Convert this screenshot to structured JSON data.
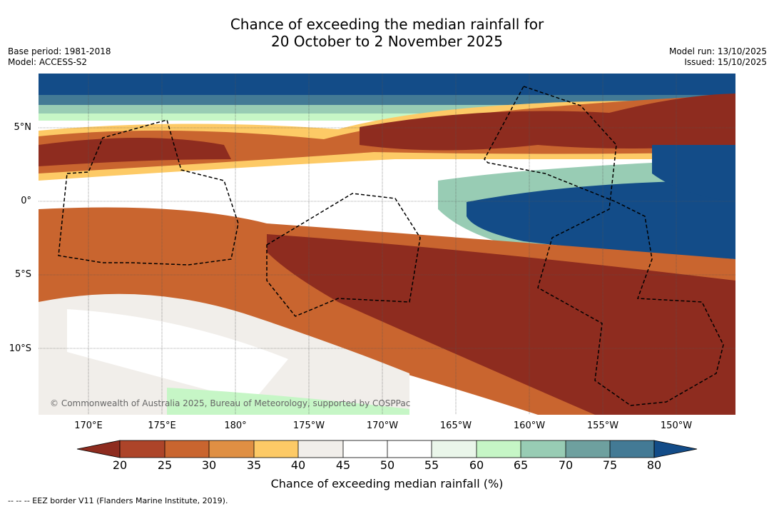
{
  "title_line1": "Chance of exceeding the median rainfall for",
  "title_line2": "20 October to 2 November 2025",
  "base_period": "Base period: 1981-2018",
  "model": "Model: ACCESS-S2",
  "model_run": "Model run: 13/10/2025",
  "issued": "Issued: 15/10/2025",
  "lat_ticks": [
    "5°N",
    "0°",
    "5°S",
    "10°S"
  ],
  "lon_ticks": [
    "170°E",
    "175°E",
    "180°",
    "175°W",
    "170°W",
    "165°W",
    "160°W",
    "155°W",
    "150°W"
  ],
  "copyright": "© Commonwealth of Australia 2025, Bureau of Meteorology, supported by COSPPac",
  "colorbar_ticks": [
    "20",
    "25",
    "30",
    "35",
    "40",
    "45",
    "50",
    "55",
    "60",
    "65",
    "70",
    "75",
    "80"
  ],
  "colorbar_label": "Chance of exceeding median rainfall (%)",
  "footer": "--  --  -- EEZ border V11 (Flanders Marine Institute, 2019).",
  "colors": {
    "c15": "#8e2c1f",
    "c20": "#ad4429",
    "c25": "#c9652f",
    "c30": "#df8f43",
    "c35": "#fdca66",
    "c40": "#f1eeea",
    "c45": "#ffffff",
    "c50": "#ffffff",
    "c55": "#eaf6ea",
    "c60": "#c6f6c6",
    "c65": "#98ccb4",
    "c70": "#6ea09f",
    "c75": "#437a95",
    "c80": "#134c88"
  }
}
